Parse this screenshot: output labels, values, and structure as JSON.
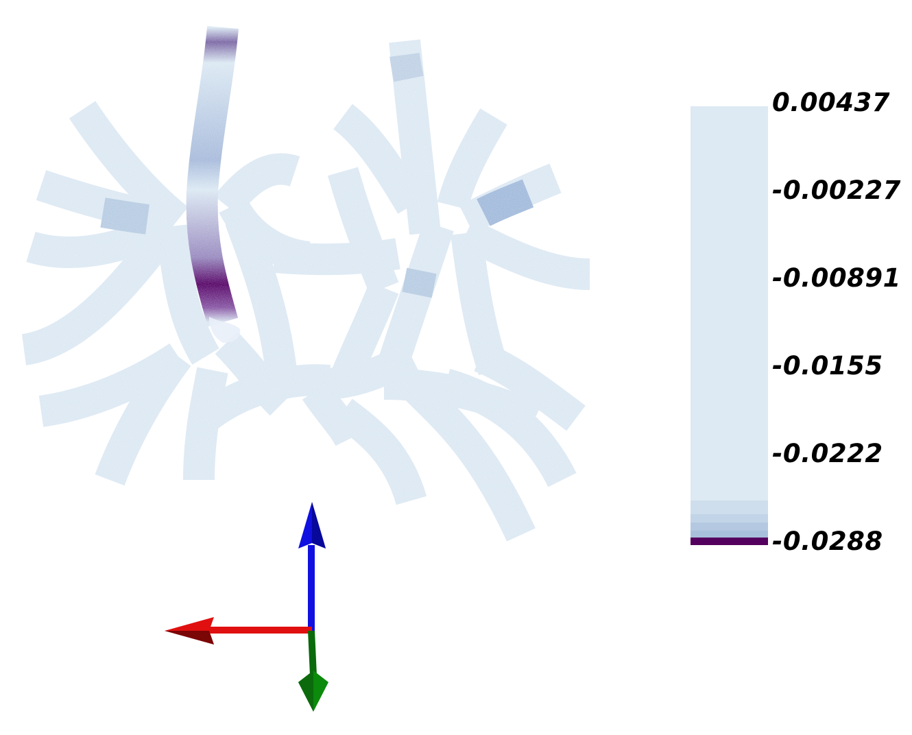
{
  "scalar_bar": {
    "labels": [
      "0.00437",
      "-0.00227",
      "-0.00891",
      "-0.0155",
      "-0.0222",
      "-0.0288"
    ],
    "range": [
      -0.0288,
      0.00437
    ],
    "colors": {
      "low": "#54005e",
      "mid": "#a8c0dc",
      "high": "#dde9f3"
    }
  },
  "mesh": {
    "base_color": "#dce9f3",
    "highlight_colors": [
      "#b9cde3",
      "#8b9fcc",
      "#7a3f8f",
      "#54005e"
    ]
  },
  "axes": {
    "x_color": "#e01010",
    "y_color": "#0b8a0b",
    "z_color": "#1010e0"
  }
}
